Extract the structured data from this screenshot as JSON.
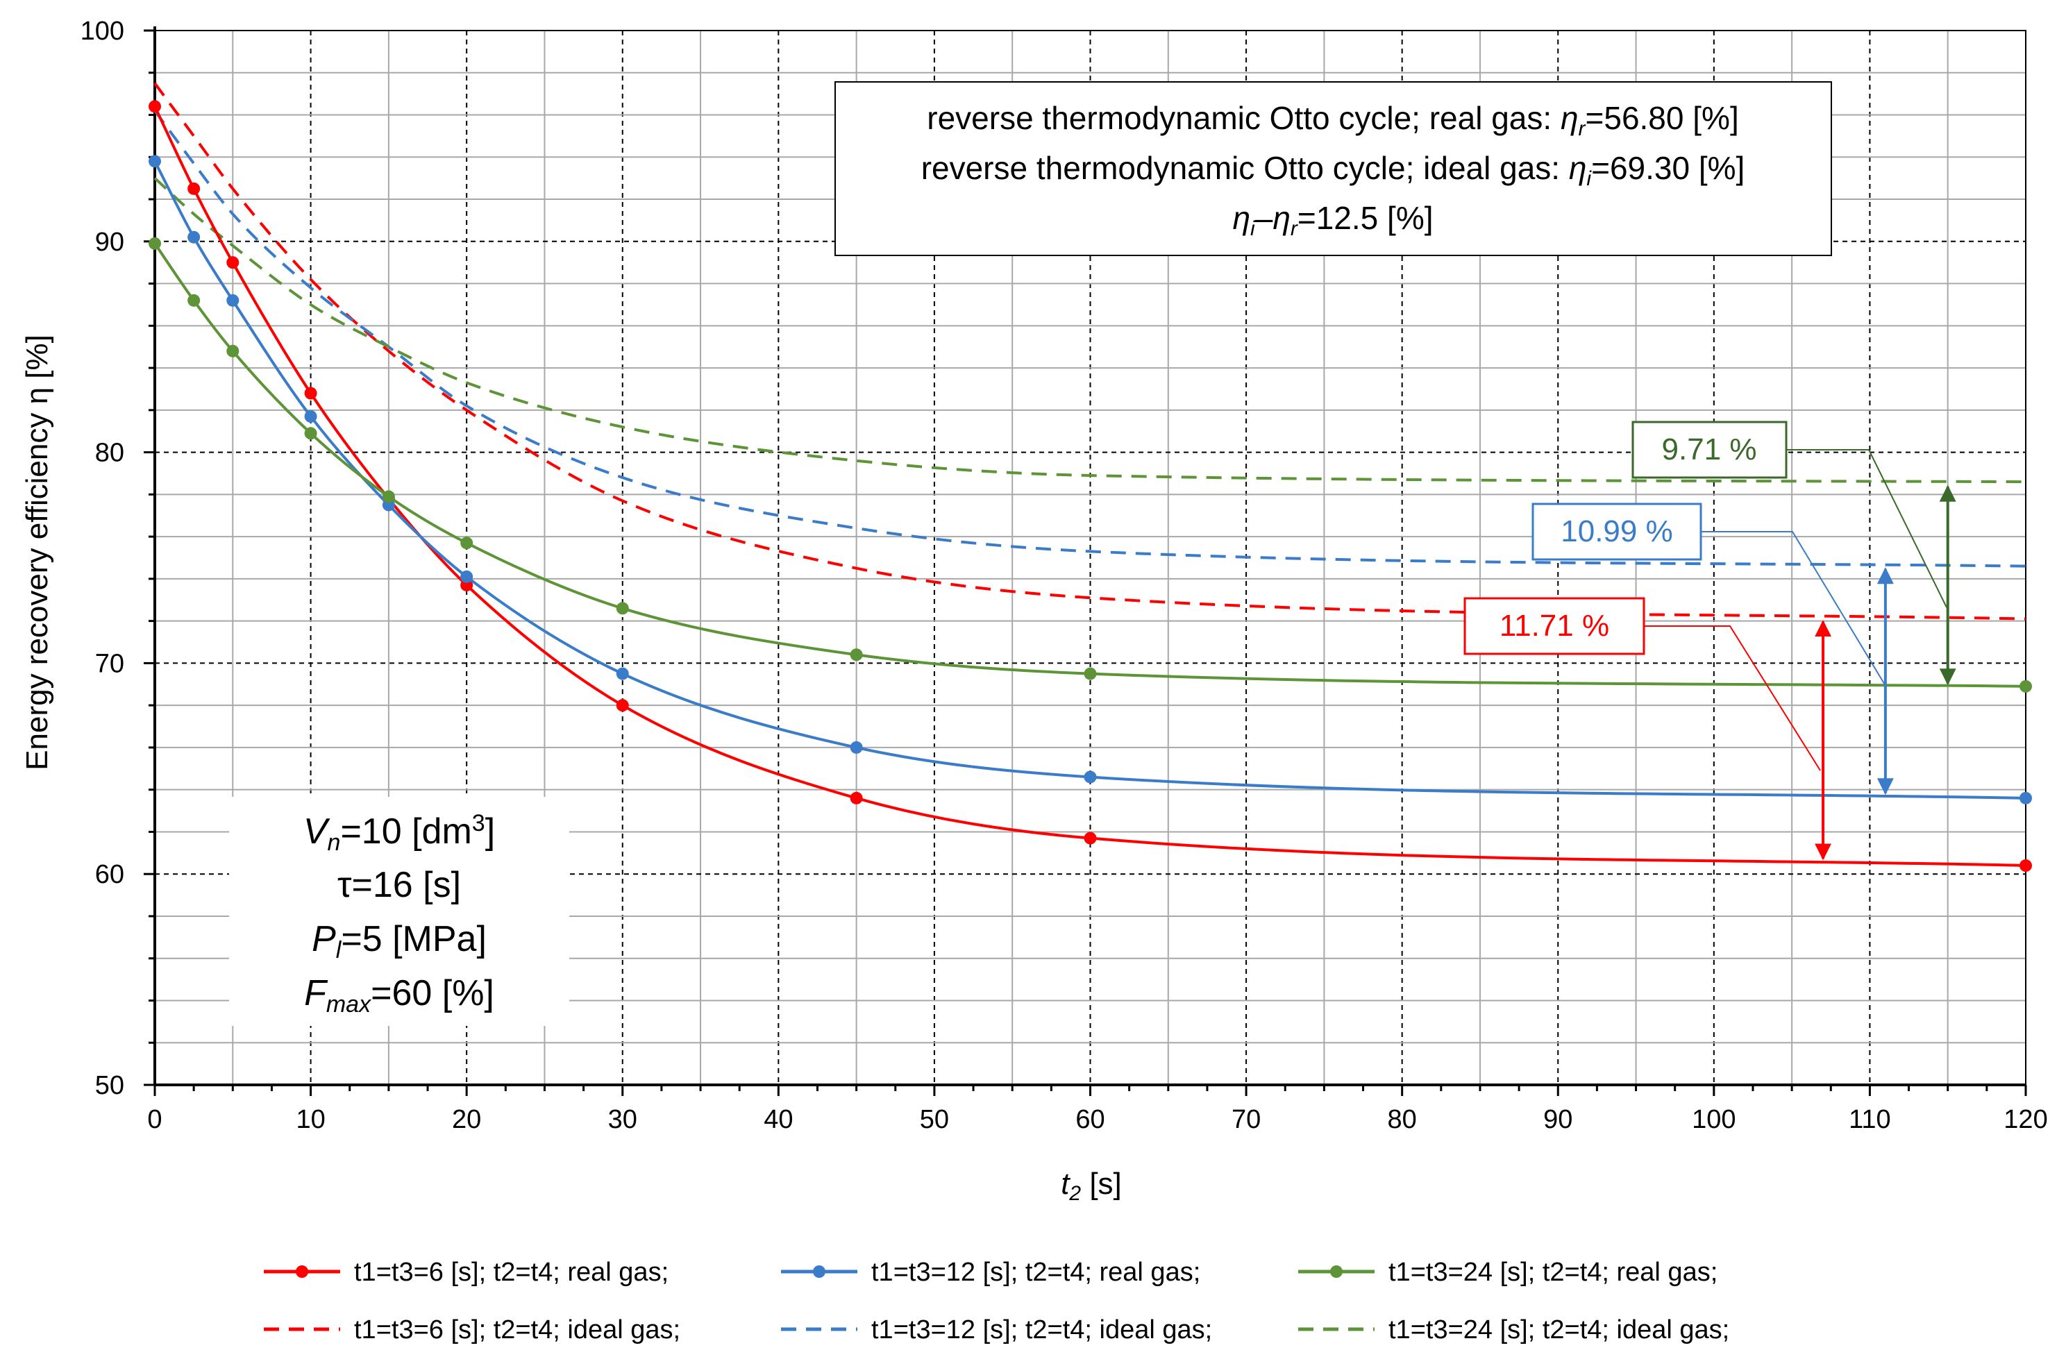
{
  "chart_data": {
    "type": "line",
    "xlabel": "t₂ [s]",
    "ylabel": "Energy recovery efficiency η [%]",
    "xlim": [
      0,
      120
    ],
    "ylim": [
      50,
      100
    ],
    "x_ticks": [
      0,
      10,
      20,
      30,
      40,
      50,
      60,
      70,
      80,
      90,
      100,
      110,
      120
    ],
    "y_ticks": [
      50,
      60,
      70,
      80,
      90,
      100
    ],
    "grid": true,
    "x": [
      0,
      2.5,
      5,
      10,
      15,
      20,
      30,
      45,
      60,
      120
    ],
    "series": [
      {
        "name": "t1=t3=6 [s]; t2=t4; real gas;",
        "color": "#ff0000",
        "style": "solid",
        "markers": true,
        "values": [
          96.4,
          92.5,
          89.0,
          82.8,
          77.8,
          73.7,
          68.0,
          63.6,
          61.7,
          60.4
        ]
      },
      {
        "name": "t1=t3=12 [s]; t2=t4; real gas;",
        "color": "#3a7cc9",
        "style": "solid",
        "markers": true,
        "values": [
          93.8,
          90.2,
          87.2,
          81.7,
          77.5,
          74.1,
          69.5,
          66.0,
          64.6,
          63.6
        ]
      },
      {
        "name": "t1=t3=24 [s]; t2=t4; real gas;",
        "color": "#5e9438",
        "style": "solid",
        "markers": true,
        "values": [
          89.9,
          87.2,
          84.8,
          80.9,
          77.9,
          75.7,
          72.6,
          70.4,
          69.5,
          68.9
        ]
      },
      {
        "name": "t1=t3=6 [s]; t2=t4; ideal gas;",
        "color": "#ff0000",
        "style": "dashed",
        "markers": false,
        "values": [
          97.5,
          95.0,
          92.5,
          88.2,
          84.8,
          82.0,
          77.7,
          74.5,
          73.1,
          72.1
        ]
      },
      {
        "name": "t1=t3=12 [s]; t2=t4; ideal gas;",
        "color": "#3a7cc9",
        "style": "dashed",
        "markers": false,
        "values": [
          96.2,
          93.7,
          91.3,
          87.8,
          85.0,
          82.2,
          78.8,
          76.4,
          75.3,
          74.6
        ]
      },
      {
        "name": "t1=t3=24 [s]; t2=t4; ideal gas;",
        "color": "#5e9438",
        "style": "dashed",
        "markers": false,
        "values": [
          93.0,
          91.3,
          89.8,
          87.0,
          85.0,
          83.3,
          81.2,
          79.6,
          78.9,
          78.6
        ]
      }
    ],
    "annotations": {
      "info_box": {
        "line1_prefix": "reverse thermodynamic Otto cycle; real gas: ",
        "line1_symbol": "η",
        "line1_sub": "r",
        "line1_value": "=56.80 [%]",
        "line2_prefix": "reverse thermodynamic Otto cycle; ideal gas: ",
        "line2_symbol": "η",
        "line2_sub": "i",
        "line2_value": "=69.30 [%]",
        "line3_sym1": "η",
        "line3_sub1": "i",
        "line3_op": "–",
        "line3_sym2": "η",
        "line3_sub2": "r",
        "line3_value": "=12.5 [%]"
      },
      "params": {
        "vn_sym": "V",
        "vn_sub": "n",
        "vn_value": "=10 [dm",
        "vn_sup": "3",
        "vn_close": "]",
        "tau": "τ=16 [s]",
        "pl_sym": "P",
        "pl_sub": "l",
        "pl_value": "=5 [MPa]",
        "fmax_sym": "F",
        "fmax_sub": "max",
        "fmax_value": "=60 [%]"
      },
      "gap_red": {
        "label": "11.71 %",
        "x": 107,
        "from": 60.6,
        "to": 72.1,
        "color": "#ff0000"
      },
      "gap_blue": {
        "label": "10.99 %",
        "x": 111,
        "from": 63.7,
        "to": 74.6,
        "color": "#3a7cc9"
      },
      "gap_green": {
        "label": "9.71 %",
        "x": 115,
        "from": 68.9,
        "to": 78.5,
        "color": "#3a6a2a"
      }
    }
  }
}
